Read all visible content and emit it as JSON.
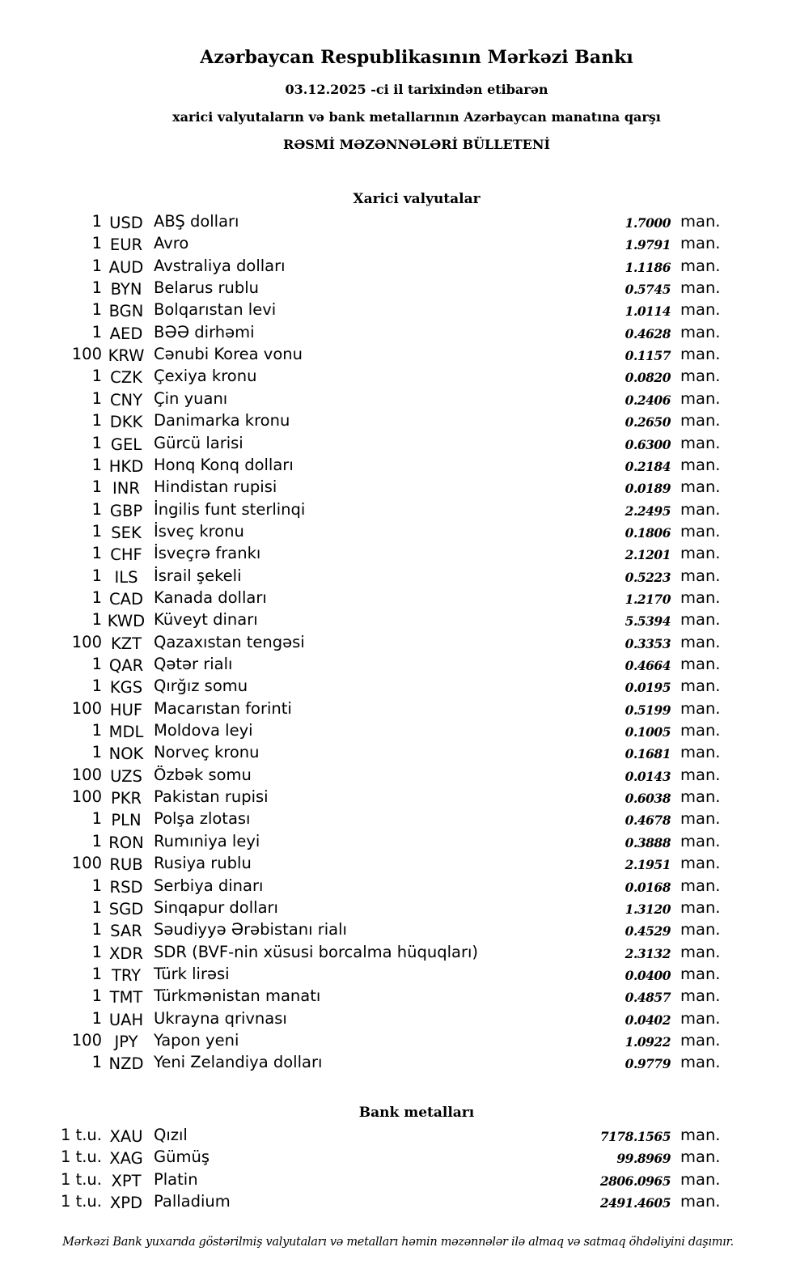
{
  "header": {
    "title": "Azərbaycan Respublikasının Mərkəzi Bankı",
    "date_line": "03.12.2025 -ci il tarixindən etibarən",
    "subtitle": "xarici valyutaların və bank metallarının Azərbaycan manatına qarşı",
    "bulletin": "RƏSMİ MƏZƏNNƏLƏRİ BÜLLETENİ"
  },
  "currency_unit": "man.",
  "currencies": {
    "title": "Xarici valyutalar",
    "rows": [
      {
        "amount": "1",
        "code": "USD",
        "name": "ABŞ dolları",
        "rate": "1.7000"
      },
      {
        "amount": "1",
        "code": "EUR",
        "name": "Avro",
        "rate": "1.9791"
      },
      {
        "amount": "1",
        "code": "AUD",
        "name": "Avstraliya dolları",
        "rate": "1.1186"
      },
      {
        "amount": "1",
        "code": "BYN",
        "name": "Belarus rublu",
        "rate": "0.5745"
      },
      {
        "amount": "1",
        "code": "BGN",
        "name": "Bolqarıstan levi",
        "rate": "1.0114"
      },
      {
        "amount": "1",
        "code": "AED",
        "name": "BƏƏ dirhəmi",
        "rate": "0.4628"
      },
      {
        "amount": "100",
        "code": "KRW",
        "name": "Cənubi Korea vonu",
        "rate": "0.1157"
      },
      {
        "amount": "1",
        "code": "CZK",
        "name": "Çexiya kronu",
        "rate": "0.0820"
      },
      {
        "amount": "1",
        "code": "CNY",
        "name": "Çin yuanı",
        "rate": "0.2406"
      },
      {
        "amount": "1",
        "code": "DKK",
        "name": "Danimarka kronu",
        "rate": "0.2650"
      },
      {
        "amount": "1",
        "code": "GEL",
        "name": "Gürcü larisi",
        "rate": "0.6300"
      },
      {
        "amount": "1",
        "code": "HKD",
        "name": "Honq Konq dolları",
        "rate": "0.2184"
      },
      {
        "amount": "1",
        "code": "INR",
        "name": "Hindistan rupisi",
        "rate": "0.0189"
      },
      {
        "amount": "1",
        "code": "GBP",
        "name": "İngilis funt sterlinqi",
        "rate": "2.2495"
      },
      {
        "amount": "1",
        "code": "SEK",
        "name": "İsveç kronu",
        "rate": "0.1806"
      },
      {
        "amount": "1",
        "code": "CHF",
        "name": "İsveçrə frankı",
        "rate": "2.1201"
      },
      {
        "amount": "1",
        "code": "ILS",
        "name": "İsrail şekeli",
        "rate": "0.5223"
      },
      {
        "amount": "1",
        "code": "CAD",
        "name": "Kanada dolları",
        "rate": "1.2170"
      },
      {
        "amount": "1",
        "code": "KWD",
        "name": "Küveyt dinarı",
        "rate": "5.5394"
      },
      {
        "amount": "100",
        "code": "KZT",
        "name": "Qazaxıstan tengəsi",
        "rate": "0.3353"
      },
      {
        "amount": "1",
        "code": "QAR",
        "name": "Qətər rialı",
        "rate": "0.4664"
      },
      {
        "amount": "1",
        "code": "KGS",
        "name": "Qırğız somu",
        "rate": "0.0195"
      },
      {
        "amount": "100",
        "code": "HUF",
        "name": "Macarıstan forinti",
        "rate": "0.5199"
      },
      {
        "amount": "1",
        "code": "MDL",
        "name": "Moldova leyi",
        "rate": "0.1005"
      },
      {
        "amount": "1",
        "code": "NOK",
        "name": "Norveç kronu",
        "rate": "0.1681"
      },
      {
        "amount": "100",
        "code": "UZS",
        "name": "Özbək somu",
        "rate": "0.0143"
      },
      {
        "amount": "100",
        "code": "PKR",
        "name": "Pakistan rupisi",
        "rate": "0.6038"
      },
      {
        "amount": "1",
        "code": "PLN",
        "name": "Polşa zlotası",
        "rate": "0.4678"
      },
      {
        "amount": "1",
        "code": "RON",
        "name": "Rumıniya leyi",
        "rate": "0.3888"
      },
      {
        "amount": "100",
        "code": "RUB",
        "name": "Rusiya rublu",
        "rate": "2.1951"
      },
      {
        "amount": "1",
        "code": "RSD",
        "name": "Serbiya dinarı",
        "rate": "0.0168"
      },
      {
        "amount": "1",
        "code": "SGD",
        "name": "Sinqapur dolları",
        "rate": "1.3120"
      },
      {
        "amount": "1",
        "code": "SAR",
        "name": "Səudiyyə Ərəbistanı rialı",
        "rate": "0.4529"
      },
      {
        "amount": "1",
        "code": "XDR",
        "name": "SDR (BVF-nin xüsusi borcalma hüquqları)",
        "rate": "2.3132"
      },
      {
        "amount": "1",
        "code": "TRY",
        "name": "Türk lirəsi",
        "rate": "0.0400"
      },
      {
        "amount": "1",
        "code": "TMT",
        "name": "Türkmənistan manatı",
        "rate": "0.4857"
      },
      {
        "amount": "1",
        "code": "UAH",
        "name": "Ukrayna qrivnası",
        "rate": "0.0402"
      },
      {
        "amount": "100",
        "code": "JPY",
        "name": "Yapon yeni",
        "rate": "1.0922"
      },
      {
        "amount": "1",
        "code": "NZD",
        "name": "Yeni Zelandiya dolları",
        "rate": "0.9779"
      }
    ]
  },
  "metals": {
    "title": "Bank metalları",
    "rows": [
      {
        "amount": "1 t.u.",
        "code": "XAU",
        "name": "Qızıl",
        "rate": "7178.1565"
      },
      {
        "amount": "1 t.u.",
        "code": "XAG",
        "name": "Gümüş",
        "rate": "99.8969"
      },
      {
        "amount": "1 t.u.",
        "code": "XPT",
        "name": "Platin",
        "rate": "2806.0965"
      },
      {
        "amount": "1 t.u.",
        "code": "XPD",
        "name": "Palladium",
        "rate": "2491.4605"
      }
    ]
  },
  "footer": "Mərkəzi Bank yuxarıda göstərilmiş valyutaları və metalları həmin məzənnələr ilə almaq və satmaq öhdəliyini daşımır."
}
